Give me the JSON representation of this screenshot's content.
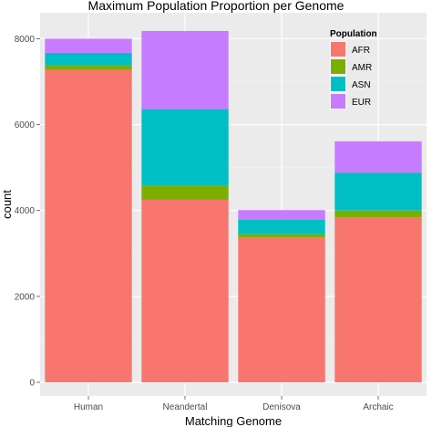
{
  "chart_data": {
    "type": "bar",
    "stacked": true,
    "title": "Maximum Population Proportion per Genome",
    "xlabel": "Matching Genome",
    "ylabel": "count",
    "categories": [
      "Human",
      "Neandertal",
      "Denisova",
      "Archaic"
    ],
    "ylim": [
      0,
      8400
    ],
    "yticks": [
      0,
      2000,
      4000,
      6000,
      8000
    ],
    "grid": true,
    "legend": {
      "title": "Population",
      "placement": "top-right"
    },
    "series": [
      {
        "name": "AFR",
        "color": "#F8766D",
        "values": [
          7270,
          4250,
          3370,
          3840
        ]
      },
      {
        "name": "AMR",
        "color": "#7CAE00",
        "values": [
          110,
          330,
          80,
          160
        ]
      },
      {
        "name": "ASN",
        "color": "#00BFC4",
        "values": [
          290,
          1780,
          340,
          880
        ]
      },
      {
        "name": "EUR",
        "color": "#C77CFF",
        "values": [
          330,
          1820,
          220,
          730
        ]
      }
    ]
  }
}
